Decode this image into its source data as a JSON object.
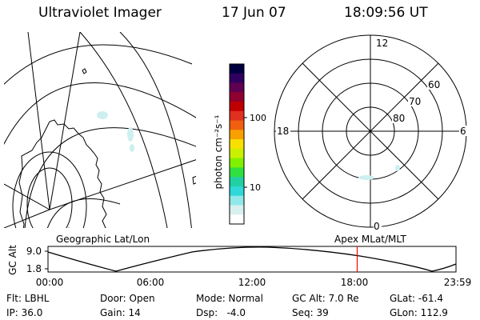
{
  "header": {
    "instrument": "Ultraviolet Imager",
    "date": "17 Jun 07",
    "time": "18:09:56 UT"
  },
  "colorbar": {
    "unit_label": "photon cm⁻²s⁻¹",
    "ticks": [
      {
        "label": "100",
        "value": 100
      },
      {
        "label": "10",
        "value": 10
      }
    ],
    "colors": [
      "#000040",
      "#300060",
      "#600050",
      "#900030",
      "#c00000",
      "#e03020",
      "#f06010",
      "#f8a000",
      "#f8e000",
      "#c8f000",
      "#80f000",
      "#30e040",
      "#20d0a0",
      "#30d8d8",
      "#90e8e8",
      "#d8f0f0",
      "#ffffff"
    ]
  },
  "polar_plot": {
    "mlt_labels": {
      "top": "12",
      "left": "18",
      "right": "6",
      "bottom": "0"
    },
    "mlat_labels": [
      "60",
      "70",
      "80"
    ]
  },
  "timeline": {
    "left_label": "Geographic Lat/Lon",
    "right_label": "Apex MLat/MLT",
    "y_axis_label": "GC Alt",
    "y_ticks": [
      "9.0",
      "1.8"
    ],
    "x_ticks": [
      "00:00",
      "06:00",
      "12:00",
      "18:00",
      "23:59"
    ],
    "current_time": "18:09:56",
    "marker_color": "#ff0000"
  },
  "status": {
    "filter": "Flt: LBHL",
    "ip": "IP: 36.0",
    "door": "Door: Open",
    "gain": "Gain: 14",
    "mode": "Mode: Normal",
    "dsp": "Dsp:   -4.0",
    "gc_alt": "GC Alt: 7.0 Re",
    "seq": "Seq: 39",
    "glat": "GLat: -61.4",
    "glon": "GLon: 112.9"
  }
}
